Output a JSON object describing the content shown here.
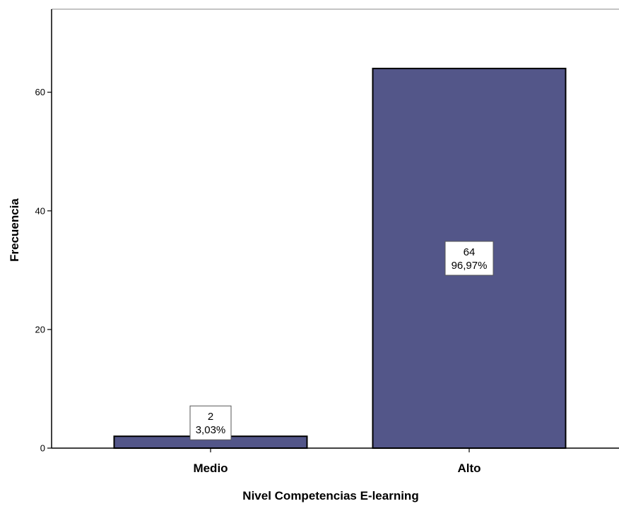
{
  "chart_data": {
    "type": "bar",
    "categories": [
      "Medio",
      "Alto"
    ],
    "values": [
      2,
      64
    ],
    "percent_labels": [
      "3,03%",
      "96,97%"
    ],
    "value_labels": [
      "2",
      "64"
    ],
    "xlabel": "Nivel Competencias E-learning",
    "ylabel": "Frecuencia",
    "ylim": [
      0,
      74
    ],
    "yticks": [
      0,
      20,
      40,
      60
    ],
    "ytick_labels": [
      "0",
      "20",
      "40",
      "60"
    ],
    "grid": false,
    "legend": "none",
    "bar_color": "#535689",
    "bar_edge_color": "#000000",
    "frame_color": "#b0b0b0"
  }
}
